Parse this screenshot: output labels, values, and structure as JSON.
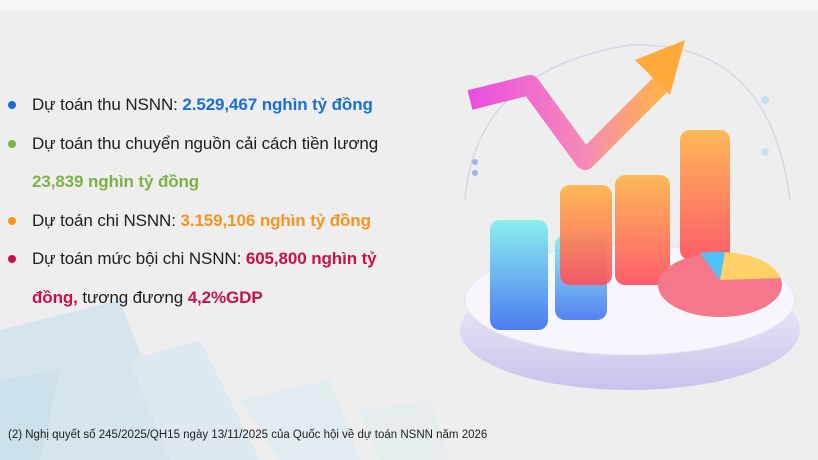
{
  "colors": {
    "blue": "#1a6fd6",
    "green": "#7cb342",
    "orange": "#f7941d",
    "crimson": "#c8104f"
  },
  "items": [
    {
      "label": "Dự toán thu NSNN: ",
      "value": "2.529,467  nghìn tỷ đồng",
      "color": "blue"
    },
    {
      "label": "Dự toán thu chuyển nguồn cải cách tiền lương",
      "value": "23,839 nghìn tỷ đồng",
      "color": "green"
    },
    {
      "label": "Dự toán chi NSNN: ",
      "value": "3.159,106 nghìn tỷ đồng",
      "color": "orange"
    },
    {
      "label": "Dự toán mức bội chi NSNN: ",
      "value": "605,800 nghìn tỷ",
      "value2": "đồng,",
      "mid": " tương đương ",
      "value3": "4,2%GDP",
      "color": "crimson"
    }
  ],
  "footnote": "(2) Nghị quyết số 245/2025/QH15 ngày 13/11/2025 của Quốc hội về dự toán NSNN năm 2026",
  "illustration": "3d-bar-chart-with-rising-arrow-and-pie-icon"
}
